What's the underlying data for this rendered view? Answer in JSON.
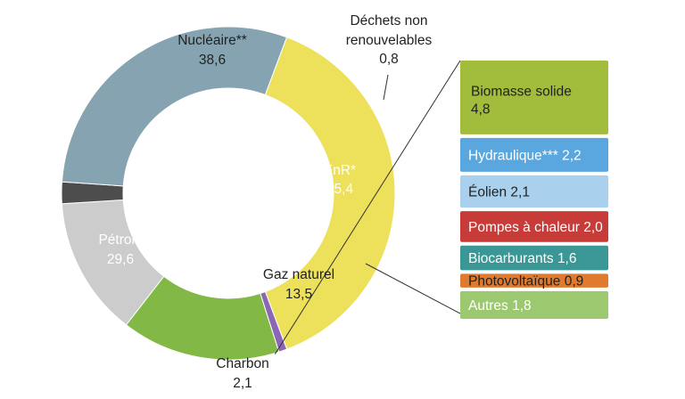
{
  "chart_data": {
    "type": "pie",
    "style": "donut-with-breakdown-bar",
    "slices": [
      {
        "name": "Nucléaire**",
        "value": 38.6,
        "value_label": "38,6",
        "color": "#ede05a",
        "label_color": "#222222"
      },
      {
        "name": "Déchets non renouvelables",
        "label_lines": [
          "Déchets non",
          "renouvelables"
        ],
        "value": 0.8,
        "value_label": "0,8",
        "color": "#8b66b5",
        "label_color": "#222222"
      },
      {
        "name": "EnR*",
        "value": 15.4,
        "value_label": "15,4",
        "color": "#82b946",
        "label_color": "#ffffff"
      },
      {
        "name": "Gaz naturel",
        "value": 13.5,
        "value_label": "13,5",
        "color": "#cccccc",
        "label_color": "#222222"
      },
      {
        "name": "Charbon",
        "value": 2.1,
        "value_label": "2,1",
        "color": "#4d4d4d",
        "label_color": "#222222"
      },
      {
        "name": "Pétrole",
        "value": 29.6,
        "value_label": "29,6",
        "color": "#85a3b0",
        "label_color": "#ffffff"
      }
    ],
    "breakdown": {
      "parent": "EnR*",
      "items": [
        {
          "name": "Biomasse solide",
          "value": 4.8,
          "value_label": "4,8",
          "color": "#a2bd3b",
          "label_color": "#222222"
        },
        {
          "name": "Hydraulique***",
          "value": 2.2,
          "value_label": "2,2",
          "color": "#5aa7df",
          "label_color": "#ffffff"
        },
        {
          "name": "Éolien",
          "value": 2.1,
          "value_label": "2,1",
          "color": "#a9d0ec",
          "label_color": "#222222"
        },
        {
          "name": "Pompes à chaleur",
          "value": 2.0,
          "value_label": "2,0",
          "color": "#c73c38",
          "label_color": "#ffffff"
        },
        {
          "name": "Biocarburants",
          "value": 1.6,
          "value_label": "1,6",
          "color": "#3a9796",
          "label_color": "#ffffff"
        },
        {
          "name": "Photovoltaïque",
          "value": 0.9,
          "value_label": "0,9",
          "color": "#e07a2e",
          "label_color": "#222222"
        },
        {
          "name": "Autres",
          "value": 1.8,
          "value_label": "1,8",
          "color": "#9cc86f",
          "label_color": "#ffffff"
        }
      ]
    }
  }
}
